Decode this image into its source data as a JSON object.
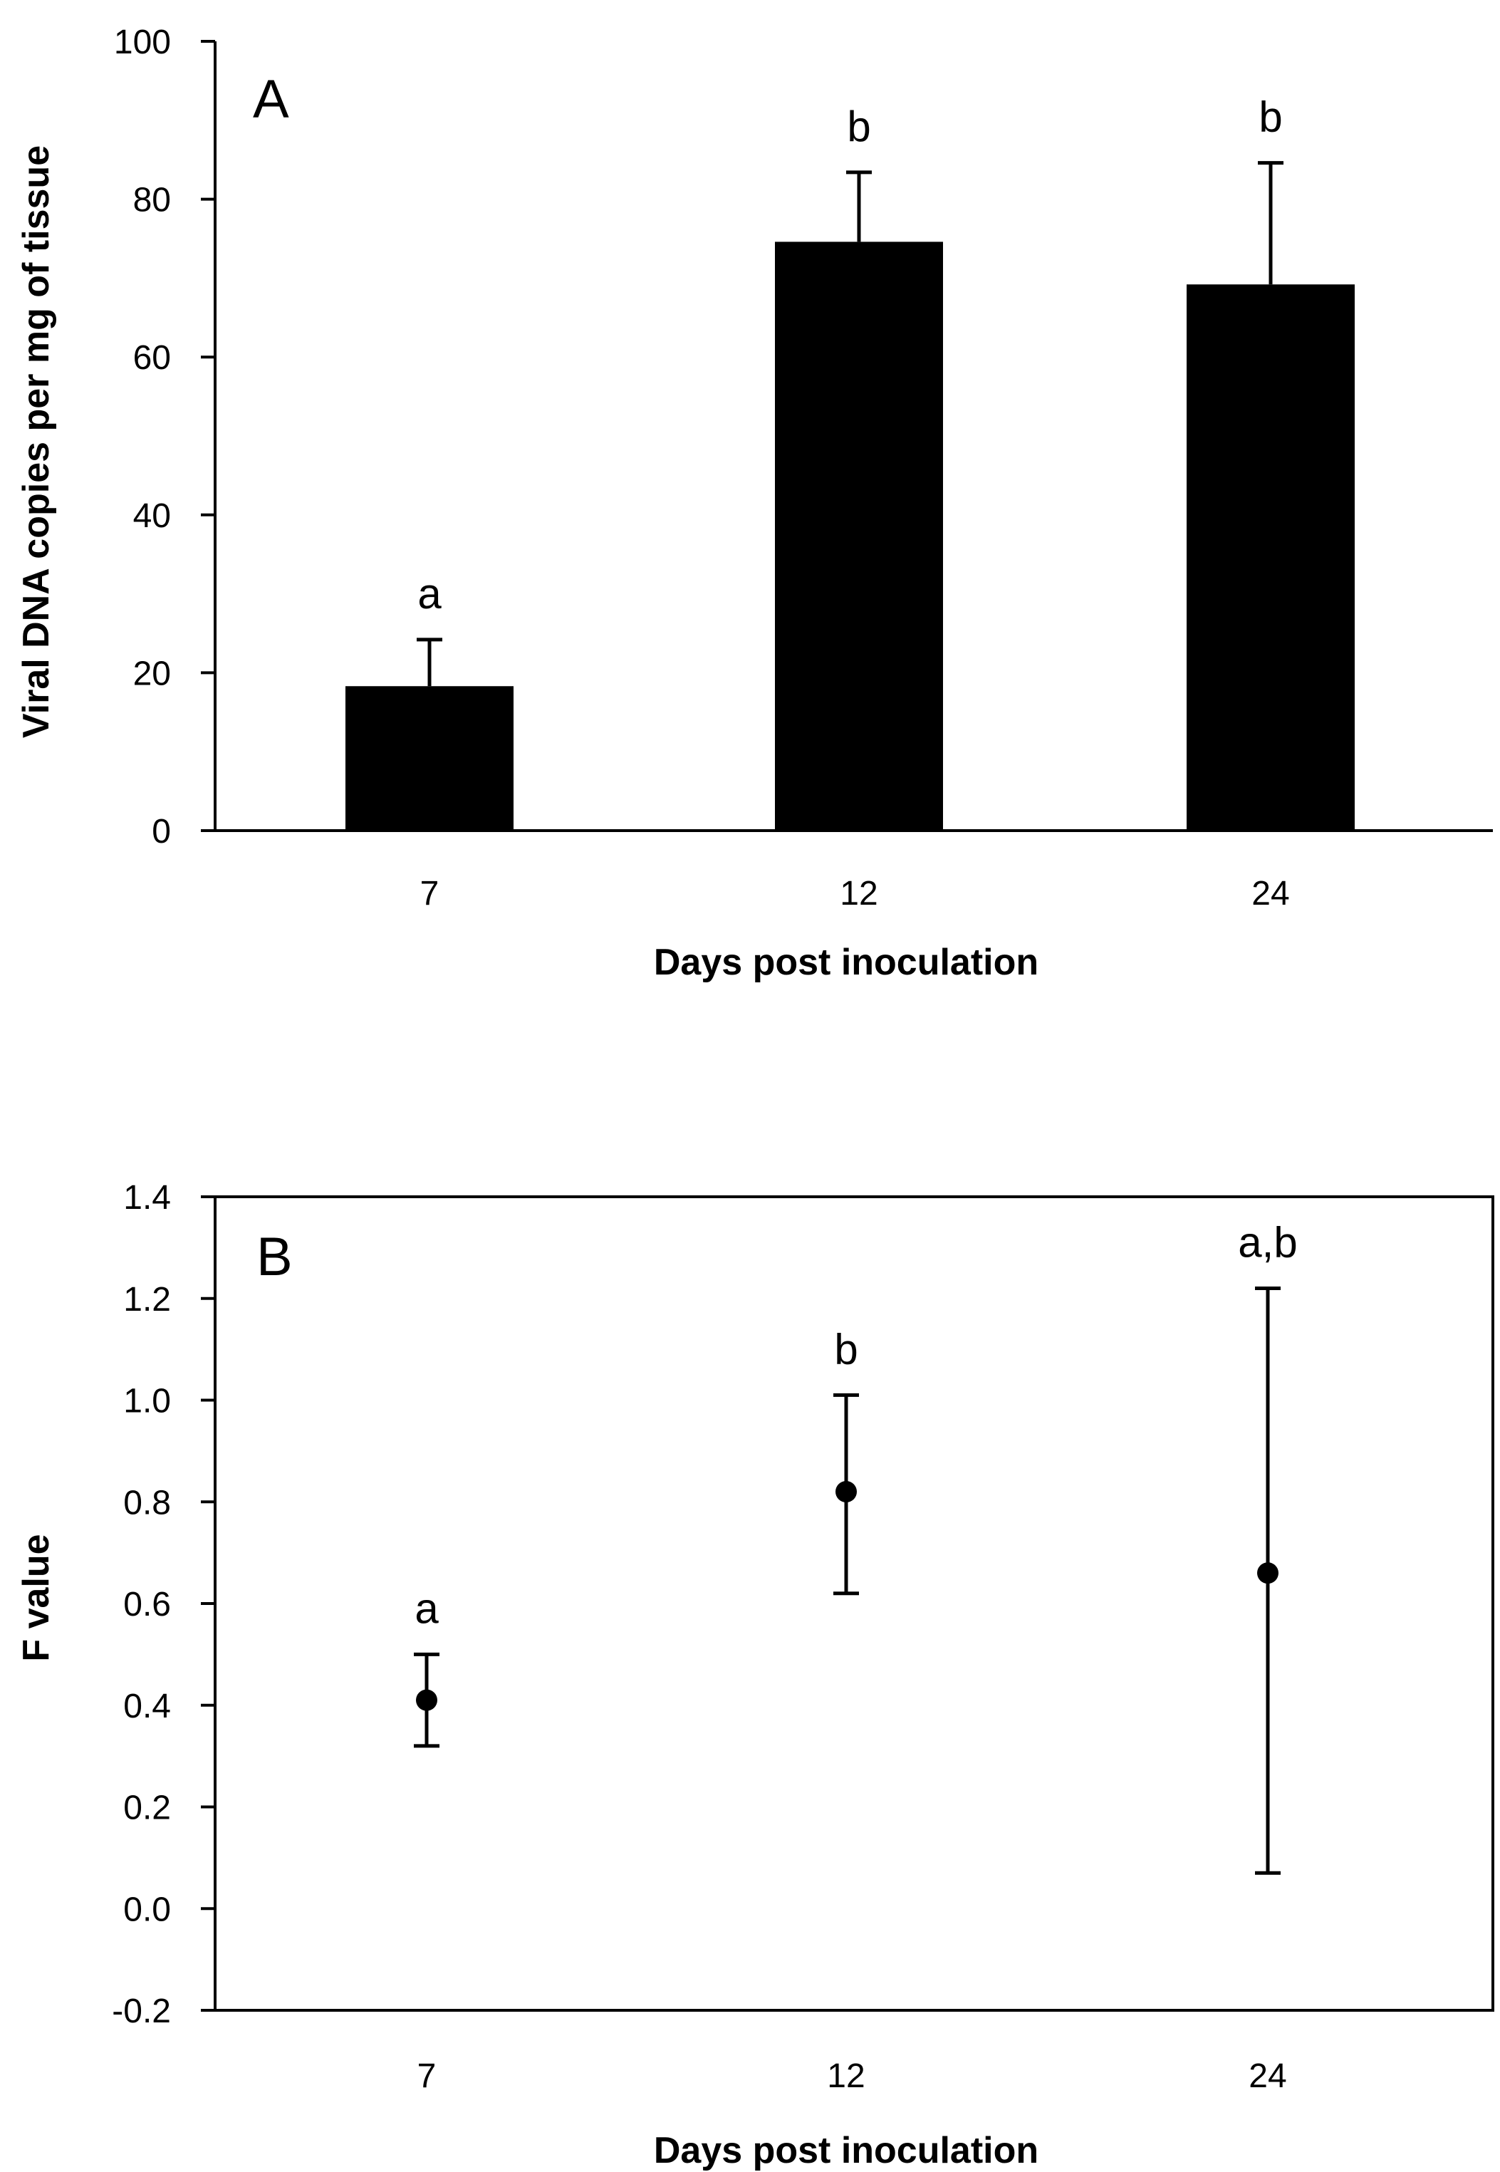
{
  "chart_data": [
    {
      "panel": "A",
      "type": "bar",
      "categories": [
        "7",
        "12",
        "24"
      ],
      "values": [
        18.3,
        74.6,
        69.2
      ],
      "error_upper": [
        24.2,
        83.4,
        84.6
      ],
      "significance": [
        "a",
        "b",
        "b"
      ],
      "xlabel": "Days post inoculation",
      "ylabel": "Viral DNA copies per mg of tissue",
      "ylim": [
        0,
        100
      ],
      "yticks": [
        0,
        20,
        40,
        60,
        80,
        100
      ],
      "ytick_labels": [
        "0",
        "20",
        "40",
        "60",
        "80",
        "100"
      ],
      "bar_color": "#000000"
    },
    {
      "panel": "B",
      "type": "scatter",
      "categories": [
        "7",
        "12",
        "24"
      ],
      "values": [
        0.41,
        0.82,
        0.66
      ],
      "error_lower": [
        0.32,
        0.62,
        0.07
      ],
      "error_upper": [
        0.5,
        1.01,
        1.22
      ],
      "significance": [
        "a",
        "b",
        "a,b"
      ],
      "xlabel": "Days post inoculation",
      "ylabel": "F value",
      "ylim": [
        -0.2,
        1.4
      ],
      "yticks": [
        -0.2,
        0.0,
        0.2,
        0.4,
        0.6,
        0.8,
        1.0,
        1.2,
        1.4
      ],
      "ytick_labels": [
        "-0.2",
        "0.0",
        "0.2",
        "0.4",
        "0.6",
        "0.8",
        "1.0",
        "1.2",
        "1.4"
      ],
      "marker_color": "#000000"
    }
  ]
}
